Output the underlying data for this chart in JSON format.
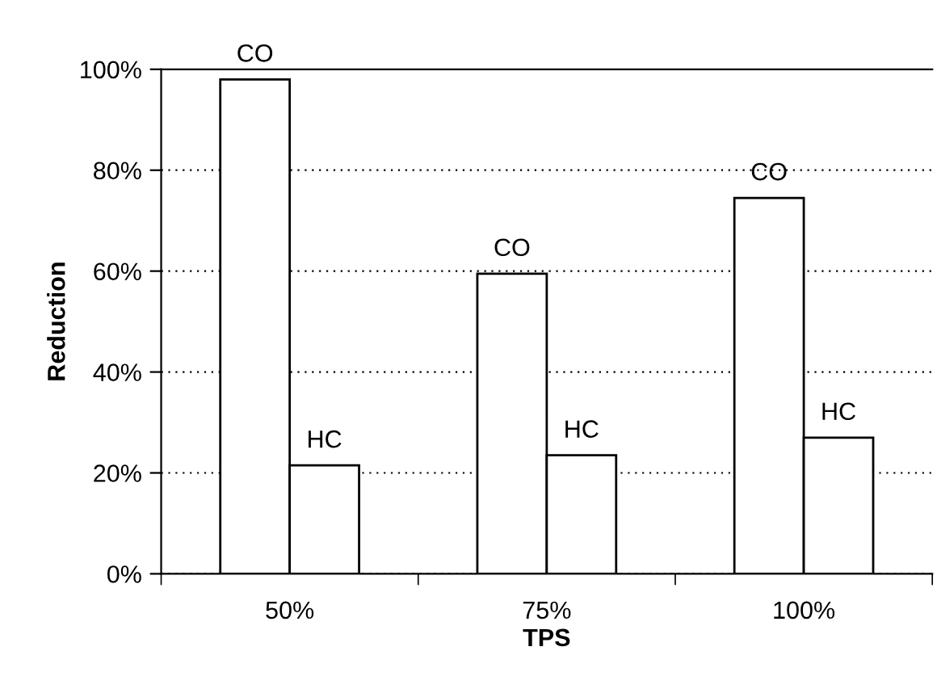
{
  "chart_data": {
    "type": "bar",
    "xlabel": "TPS",
    "ylabel": "Reduction",
    "categories": [
      "50%",
      "75%",
      "100%"
    ],
    "series": [
      {
        "name": "CO",
        "color": "#ffffff",
        "values": [
          98,
          59.5,
          74.5
        ]
      },
      {
        "name": "HC",
        "color": "#ffffff",
        "values": [
          21.5,
          23.5,
          27
        ]
      }
    ],
    "ylim": [
      0,
      100
    ],
    "yticks": [
      {
        "value": 0,
        "label": "0%"
      },
      {
        "value": 20,
        "label": "20%"
      },
      {
        "value": 40,
        "label": "40%"
      },
      {
        "value": 60,
        "label": "60%"
      },
      {
        "value": 80,
        "label": "80%"
      },
      {
        "value": 100,
        "label": "100%"
      }
    ],
    "grid": "y",
    "legend": false
  }
}
